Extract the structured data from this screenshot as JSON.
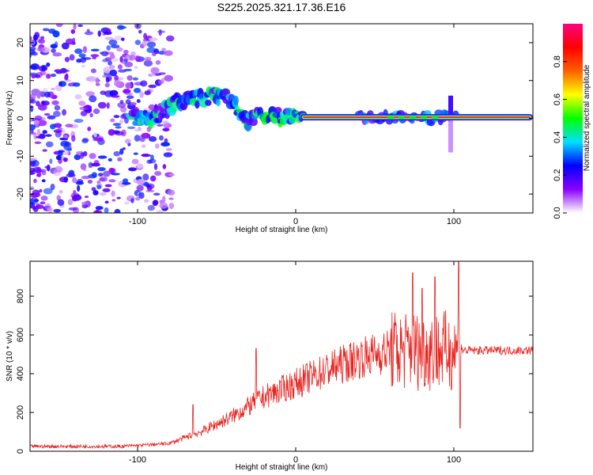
{
  "page_title": "S225.2025.321.17.36.E16",
  "chart_data": [
    {
      "type": "heatmap",
      "name": "spectrogram",
      "title": "S225.2025.321.17.36.E16",
      "xlabel": "Height of straight line (km)",
      "ylabel": "Frequency (Hz)",
      "xlim": [
        -168,
        150
      ],
      "ylim": [
        -25,
        25
      ],
      "xticks": [
        -100,
        0,
        100
      ],
      "yticks": [
        -20,
        -10,
        0,
        10,
        20
      ],
      "colorbar": {
        "label": "Normalized spectral amplitude",
        "range": [
          0,
          1
        ],
        "ticks": [
          0.0,
          0.2,
          0.4,
          0.6,
          0.8
        ],
        "tick_labels": [
          "0.0",
          "0.2",
          "0.4",
          "0.6",
          "0.8"
        ],
        "colormap": [
          "#ffffff",
          "#8a00ff",
          "#0000ff",
          "#00e0ff",
          "#00ff00",
          "#ffff00",
          "#ff6000",
          "#ff0000",
          "#ff0080"
        ]
      },
      "ridge": [
        {
          "x": -100,
          "f": 0
        },
        {
          "x": -90,
          "f": 0
        },
        {
          "x": -80,
          "f": 3
        },
        {
          "x": -70,
          "f": 5
        },
        {
          "x": -60,
          "f": 5.5
        },
        {
          "x": -50,
          "f": 6
        },
        {
          "x": -40,
          "f": 5
        },
        {
          "x": -36,
          "f": 2
        },
        {
          "x": -32,
          "f": -1
        },
        {
          "x": -25,
          "f": 0.5
        },
        {
          "x": -20,
          "f": 0.8
        },
        {
          "x": -10,
          "f": 0.5
        },
        {
          "x": 0,
          "f": 1
        },
        {
          "x": 5,
          "f": 0.3
        },
        {
          "x": 150,
          "f": 0.3
        }
      ],
      "steady_line": {
        "x_start": 5,
        "x_end": 148,
        "f": 0.3
      },
      "notch": {
        "x": 98,
        "f_min": -9,
        "f_max": 6
      }
    },
    {
      "type": "line",
      "name": "snr",
      "xlabel": "Height of straight line (km)",
      "ylabel": "SNR (10 * v/v)",
      "xlim": [
        -168,
        150
      ],
      "ylim": [
        0,
        980
      ],
      "xticks": [
        -100,
        0,
        100
      ],
      "yticks": [
        0,
        200,
        400,
        600,
        800
      ],
      "color": "#e8231f",
      "baseline": [
        {
          "x": -168,
          "y": 25
        },
        {
          "x": -110,
          "y": 25
        },
        {
          "x": -80,
          "y": 40
        },
        {
          "x": -60,
          "y": 100
        },
        {
          "x": -40,
          "y": 180
        },
        {
          "x": -20,
          "y": 280
        },
        {
          "x": 0,
          "y": 350
        },
        {
          "x": 20,
          "y": 420
        },
        {
          "x": 40,
          "y": 480
        },
        {
          "x": 60,
          "y": 520
        },
        {
          "x": 80,
          "y": 520
        },
        {
          "x": 100,
          "y": 520
        },
        {
          "x": 150,
          "y": 520
        }
      ],
      "spikes": [
        {
          "x": -65,
          "y": 240
        },
        {
          "x": -25,
          "y": 530
        },
        {
          "x": 74,
          "y": 920
        },
        {
          "x": 80,
          "y": 840
        },
        {
          "x": 88,
          "y": 900
        },
        {
          "x": 103,
          "y": 980
        },
        {
          "x": 104,
          "y": 120
        }
      ]
    }
  ]
}
